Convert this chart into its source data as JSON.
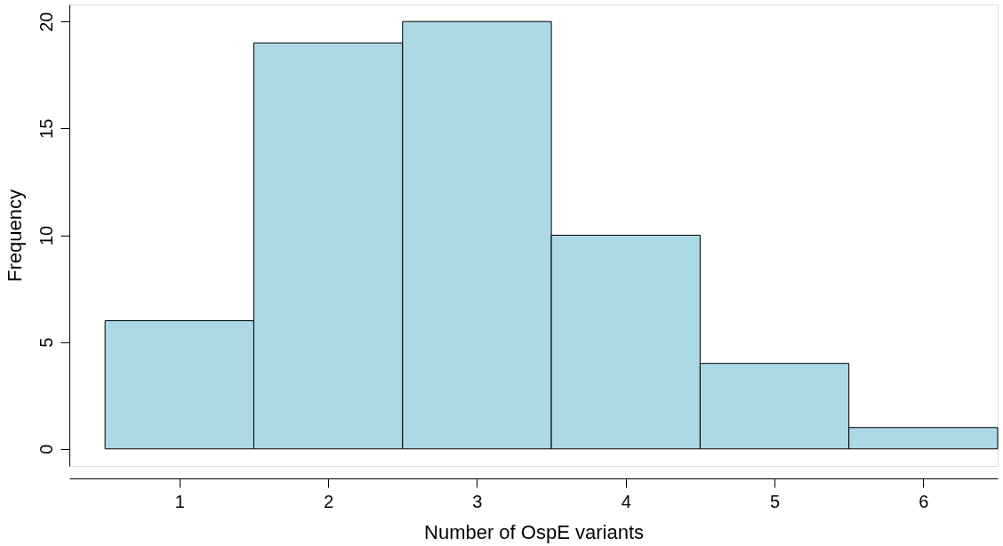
{
  "chart_data": {
    "type": "histogram",
    "xlabel": "Number of OspE variants",
    "ylabel": "Frequency",
    "bins": [
      0.5,
      1.5,
      2.5,
      3.5,
      4.5,
      5.5,
      6.5
    ],
    "values": [
      6,
      19,
      20,
      10,
      4,
      1
    ],
    "color": "#add8e6",
    "xlim": [
      0.26,
      6.5
    ],
    "xticks": [
      1,
      2,
      3,
      4,
      5,
      6
    ],
    "ylim": [
      -0.8,
      20.8
    ],
    "yticks": [
      0,
      5,
      10,
      15,
      20
    ],
    "grid": false
  }
}
